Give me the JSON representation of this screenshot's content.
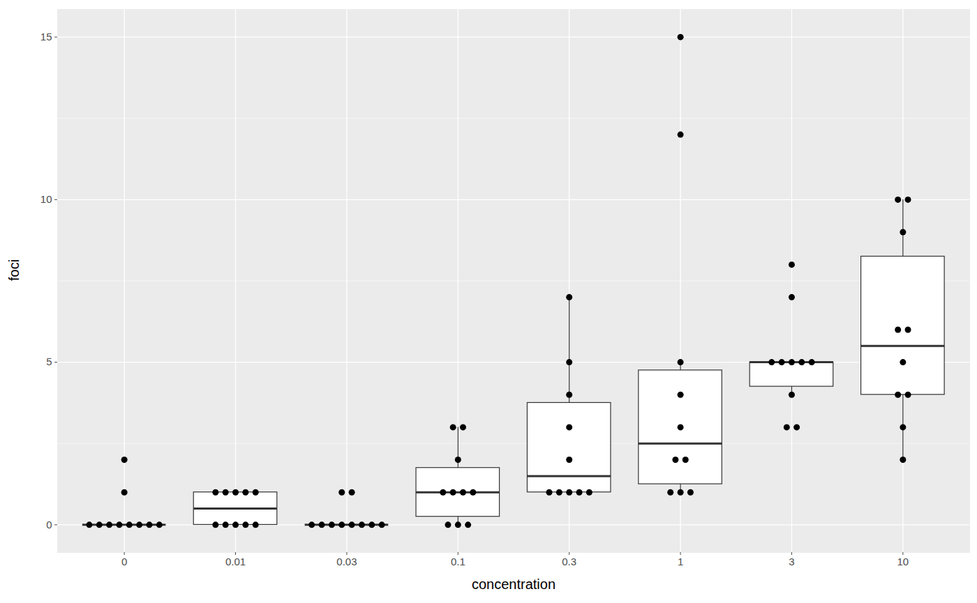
{
  "chart_data": {
    "type": "box",
    "xlabel": "concentration",
    "ylabel": "foci",
    "categories": [
      "0",
      "0.01",
      "0.03",
      "0.1",
      "0.3",
      "1",
      "3",
      "10"
    ],
    "values": [
      [
        0,
        0,
        0,
        0,
        0,
        0,
        0,
        0,
        1,
        2
      ],
      [
        0,
        0,
        0,
        0,
        0,
        1,
        1,
        1,
        1,
        1
      ],
      [
        0,
        0,
        0,
        0,
        0,
        0,
        0,
        0,
        1,
        1
      ],
      [
        0,
        0,
        0,
        1,
        1,
        1,
        1,
        2,
        3,
        3
      ],
      [
        1,
        1,
        1,
        1,
        1,
        2,
        3,
        4,
        5,
        7
      ],
      [
        1,
        1,
        1,
        2,
        2,
        3,
        4,
        5,
        12,
        15
      ],
      [
        3,
        3,
        4,
        5,
        5,
        5,
        5,
        5,
        7,
        8
      ],
      [
        2,
        3,
        4,
        4,
        5,
        6,
        6,
        9,
        10,
        10
      ]
    ],
    "ylim": [
      -0.85,
      15.85
    ],
    "yticks": [
      0,
      5,
      10,
      15
    ],
    "grid": true,
    "marker": "circle"
  }
}
